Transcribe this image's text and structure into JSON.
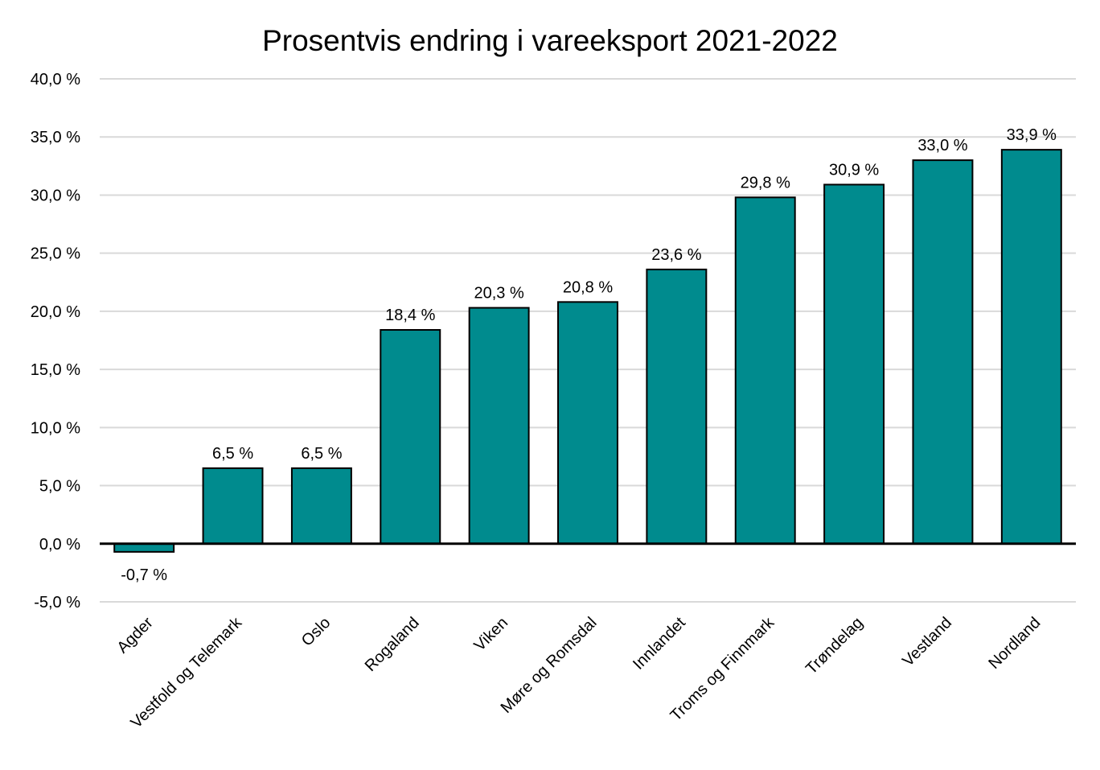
{
  "chart_data": {
    "type": "bar",
    "title": "Prosentvis endring i vareeksport 2021-2022",
    "xlabel": "",
    "ylabel": "",
    "categories": [
      "Agder",
      "Vestfold og Telemark",
      "Oslo",
      "Rogaland",
      "Viken",
      "Møre og Romsdal",
      "Innlandet",
      "Troms og Finnmark",
      "Trøndelag",
      "Vestland",
      "Nordland"
    ],
    "values": [
      -0.7,
      6.5,
      6.5,
      18.4,
      20.3,
      20.8,
      23.6,
      29.8,
      30.9,
      33.0,
      33.9
    ],
    "data_labels": [
      "-0,7 %",
      "6,5 %",
      "6,5 %",
      "18,4 %",
      "20,3 %",
      "20,8 %",
      "23,6 %",
      "29,8 %",
      "30,9 %",
      "33,0 %",
      "33,9 %"
    ],
    "ylim": [
      -5,
      40
    ],
    "yticks": [
      -5,
      0,
      5,
      10,
      15,
      20,
      25,
      30,
      35,
      40
    ],
    "ytick_labels": [
      "-5,0 %",
      "0,0 %",
      "5,0 %",
      "10,0 %",
      "15,0 %",
      "20,0 %",
      "25,0 %",
      "30,0 %",
      "35,0 %",
      "40,0 %"
    ],
    "grid": true,
    "legend": "none",
    "colors": {
      "bar": "#008B8E",
      "bar_outline": "#000000",
      "grid": "#d9d9d9",
      "axis": "#000000"
    }
  }
}
